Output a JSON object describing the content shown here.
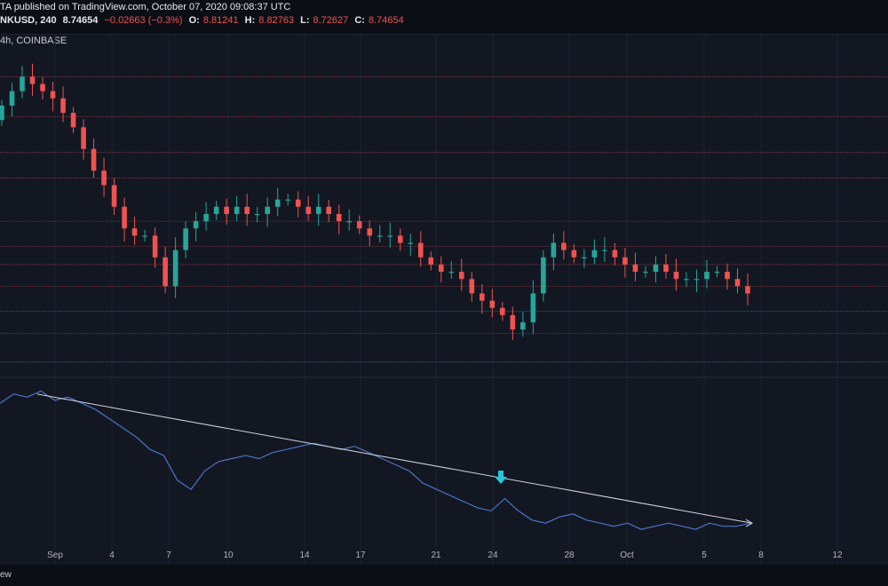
{
  "header": {
    "publisher": "TA published on TradingView.com, October 07, 2020 09:08:37 UTC",
    "symbol": "NKUSD, 240",
    "last": "8.74654",
    "change": "−0.02663 (−0.3%)",
    "o_label": "O:",
    "o_val": "8.81241",
    "h_label": "H:",
    "h_val": "8.82763",
    "l_label": "L:",
    "l_val": "8.72627",
    "c_label": "C:",
    "c_val": "8.74654"
  },
  "subtitle": "4h, COINBASE",
  "bottom_text": "ew",
  "arrow_icon": "down-arrow-icon",
  "colors": {
    "up": "#26a69a",
    "down": "#ef5350",
    "bg": "#131722",
    "indicator": "#4a74c9",
    "trendline": "#d1d4dc",
    "arrow": "#26c6da"
  },
  "chart_data": {
    "type": "candlestick",
    "x_ticks": [
      "Sep",
      "4",
      "7",
      "10",
      "14",
      "17",
      "21",
      "24",
      "28",
      "Oct",
      "5",
      "8",
      "12"
    ],
    "close_series": [
      10.7,
      10.9,
      11.1,
      11.0,
      10.9,
      10.8,
      10.6,
      10.4,
      10.1,
      9.8,
      9.6,
      9.3,
      9.0,
      8.9,
      8.9,
      8.6,
      8.2,
      8.7,
      9.0,
      9.1,
      9.2,
      9.3,
      9.2,
      9.3,
      9.2,
      9.2,
      9.3,
      9.4,
      9.4,
      9.3,
      9.2,
      9.3,
      9.2,
      9.1,
      9.1,
      9.0,
      8.9,
      8.9,
      8.9,
      8.8,
      8.8,
      8.6,
      8.5,
      8.4,
      8.4,
      8.3,
      8.1,
      8.0,
      7.9,
      7.8,
      7.6,
      7.7,
      8.1,
      8.6,
      8.8,
      8.7,
      8.6,
      8.6,
      8.7,
      8.7,
      8.6,
      8.5,
      8.4,
      8.4,
      8.5,
      8.4,
      8.3,
      8.3,
      8.3,
      8.4,
      8.4,
      8.3,
      8.2,
      8.1
    ],
    "support_levels_red": [
      11.1,
      10.55,
      10.05,
      9.7,
      9.1,
      8.75,
      8.5,
      8.2
    ],
    "support_levels_green": [
      7.85,
      7.55,
      7.15
    ],
    "indicator_series": [
      55,
      58,
      57,
      59,
      56,
      57,
      55,
      53,
      50,
      47,
      44,
      40,
      38,
      30,
      27,
      33,
      36,
      37,
      38,
      37,
      39,
      40,
      41,
      42,
      41,
      40,
      41,
      39,
      37,
      35,
      33,
      29,
      27,
      25,
      23,
      21,
      20,
      24,
      20,
      17,
      16,
      18,
      19,
      17,
      16,
      15,
      16,
      14,
      15,
      16,
      15,
      14,
      16,
      15,
      15,
      16
    ],
    "trendline": {
      "start": [
        "Sep",
        58
      ],
      "end": [
        "8",
        16
      ]
    },
    "signal_marker": "24"
  }
}
